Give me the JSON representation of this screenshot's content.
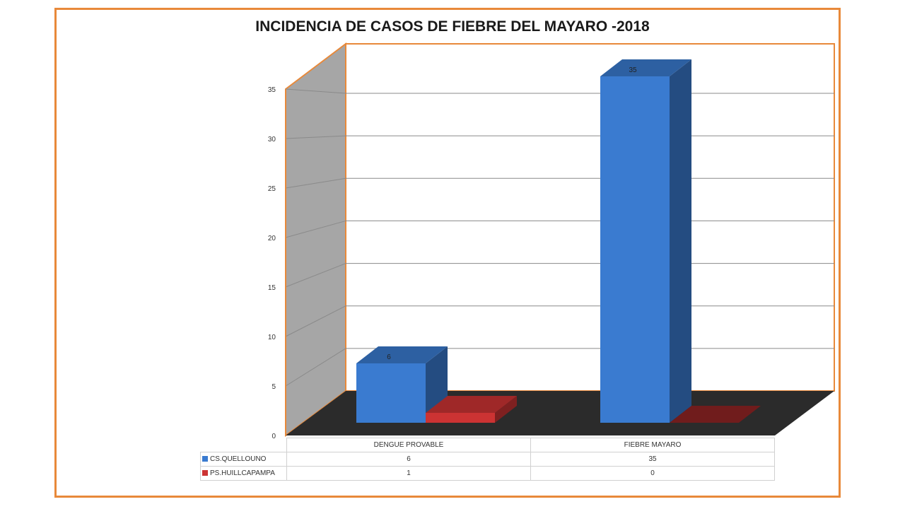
{
  "chart_data": {
    "type": "bar",
    "title": "INCIDENCIA DE CASOS DE FIEBRE DEL MAYARO -2018",
    "categories": [
      "DENGUE PROVABLE",
      "FIEBRE MAYARO"
    ],
    "series": [
      {
        "name": "CS.QUELLOUNO",
        "values": [
          6,
          35
        ],
        "color": "#3a7bd0"
      },
      {
        "name": "PS.HUILLCAPAMPA",
        "values": [
          1,
          0
        ],
        "color": "#cc3333"
      }
    ],
    "ylim": [
      0,
      35
    ],
    "yticks": [
      0,
      5,
      10,
      15,
      20,
      25,
      30,
      35
    ],
    "data_labels": [
      "6",
      "35"
    ],
    "grid": true,
    "legend": "data-table"
  },
  "colors": {
    "frame": "#e8893a",
    "wall": "#a6a6a6",
    "floor": "#2b2b2b",
    "series_1": "#3a7bd0",
    "series_2": "#cc3333"
  }
}
